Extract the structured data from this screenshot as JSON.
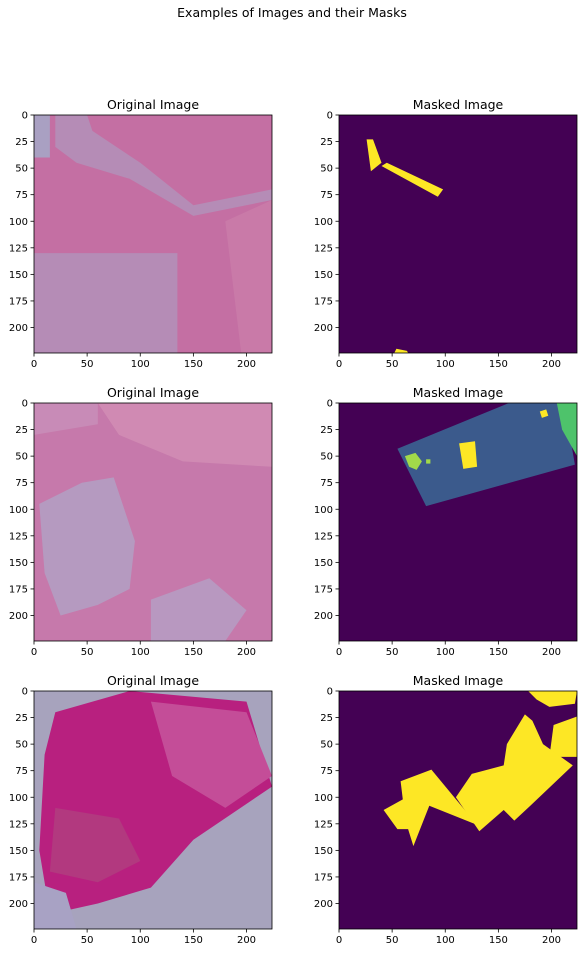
{
  "figure": {
    "suptitle": "Examples of Images and their Masks"
  },
  "colors": {
    "mask_background": "#440154",
    "mask_class_1": "#3b5a8c",
    "mask_class_2": "#fde725",
    "mask_class_3": "#4ec36b",
    "mask_class_4": "#a2d94a",
    "axis": "#000000"
  },
  "chart_data": [
    {
      "type": "image",
      "title": "Original Image",
      "xlim": [
        0,
        224
      ],
      "ylim": [
        224,
        0
      ],
      "xticks": [
        0,
        50,
        100,
        150,
        200
      ],
      "yticks": [
        0,
        25,
        50,
        75,
        100,
        125,
        150,
        175,
        200
      ],
      "image": {
        "base": "#c46fa3",
        "regions": [
          {
            "fill": "#b58cb6",
            "points": [
              [
                0,
                130
              ],
              [
                135,
                130
              ],
              [
                135,
                224
              ],
              [
                0,
                224
              ]
            ]
          },
          {
            "fill": "#b58cb6",
            "points": [
              [
                20,
                0
              ],
              [
                50,
                0
              ],
              [
                55,
                15
              ],
              [
                100,
                45
              ],
              [
                150,
                85
              ],
              [
                224,
                70
              ],
              [
                224,
                80
              ],
              [
                150,
                95
              ],
              [
                90,
                60
              ],
              [
                40,
                45
              ],
              [
                20,
                30
              ]
            ]
          },
          {
            "fill": "#c97aa8",
            "points": [
              [
                180,
                100
              ],
              [
                224,
                80
              ],
              [
                224,
                224
              ],
              [
                195,
                224
              ]
            ]
          },
          {
            "fill": "#a9a0c2",
            "points": [
              [
                0,
                0
              ],
              [
                15,
                0
              ],
              [
                15,
                40
              ],
              [
                0,
                40
              ]
            ]
          }
        ]
      }
    },
    {
      "type": "image",
      "title": "Masked Image",
      "xlim": [
        0,
        224
      ],
      "ylim": [
        224,
        0
      ],
      "xticks": [
        0,
        50,
        100,
        150,
        200
      ],
      "yticks": [
        0,
        25,
        50,
        75,
        100,
        125,
        150,
        175,
        200
      ],
      "image": {
        "base": "#440154",
        "regions": [
          {
            "fill": "#fde725",
            "points": [
              [
                26,
                23
              ],
              [
                32,
                23
              ],
              [
                40,
                45
              ],
              [
                30,
                53
              ]
            ]
          },
          {
            "fill": "#fde725",
            "points": [
              [
                40,
                48
              ],
              [
                45,
                45
              ],
              [
                98,
                70
              ],
              [
                93,
                77
              ]
            ]
          },
          {
            "fill": "#fde725",
            "points": [
              [
                52,
                224
              ],
              [
                54,
                220
              ],
              [
                64,
                222
              ],
              [
                65,
                224
              ]
            ]
          }
        ]
      }
    },
    {
      "type": "image",
      "title": "Original Image",
      "xlim": [
        0,
        224
      ],
      "ylim": [
        224,
        0
      ],
      "xticks": [
        0,
        50,
        100,
        150,
        200
      ],
      "yticks": [
        0,
        25,
        50,
        75,
        100,
        125,
        150,
        175,
        200
      ],
      "image": {
        "base": "#c679ab",
        "regions": [
          {
            "fill": "#b59ac0",
            "points": [
              [
                5,
                95
              ],
              [
                45,
                75
              ],
              [
                75,
                70
              ],
              [
                95,
                130
              ],
              [
                90,
                175
              ],
              [
                60,
                190
              ],
              [
                25,
                200
              ],
              [
                10,
                160
              ]
            ]
          },
          {
            "fill": "#b898c0",
            "points": [
              [
                110,
                185
              ],
              [
                165,
                165
              ],
              [
                200,
                195
              ],
              [
                180,
                224
              ],
              [
                110,
                224
              ]
            ]
          },
          {
            "fill": "#d08ab3",
            "points": [
              [
                60,
                0
              ],
              [
                224,
                0
              ],
              [
                224,
                60
              ],
              [
                140,
                55
              ],
              [
                80,
                30
              ]
            ]
          },
          {
            "fill": "#c88bb7",
            "points": [
              [
                0,
                0
              ],
              [
                60,
                0
              ],
              [
                60,
                20
              ],
              [
                0,
                30
              ]
            ]
          }
        ]
      }
    },
    {
      "type": "image",
      "title": "Masked Image",
      "xlim": [
        0,
        224
      ],
      "ylim": [
        224,
        0
      ],
      "xticks": [
        0,
        50,
        100,
        150,
        200
      ],
      "yticks": [
        0,
        25,
        50,
        75,
        100,
        125,
        150,
        175,
        200
      ],
      "image": {
        "base": "#440154",
        "regions": [
          {
            "fill": "#3b5a8c",
            "points": [
              [
                55,
                43
              ],
              [
                160,
                0
              ],
              [
                212,
                0
              ],
              [
                222,
                58
              ],
              [
                82,
                97
              ]
            ]
          },
          {
            "fill": "#4ec36b",
            "points": [
              [
                205,
                0
              ],
              [
                224,
                0
              ],
              [
                224,
                50
              ],
              [
                210,
                25
              ]
            ]
          },
          {
            "fill": "#a2d94a",
            "points": [
              [
                62,
                50
              ],
              [
                72,
                47
              ],
              [
                78,
                55
              ],
              [
                73,
                63
              ],
              [
                66,
                60
              ]
            ]
          },
          {
            "fill": "#a2d94a",
            "points": [
              [
                82,
                53
              ],
              [
                86,
                53
              ],
              [
                86,
                57
              ],
              [
                82,
                57
              ]
            ]
          },
          {
            "fill": "#fde725",
            "points": [
              [
                113,
                38
              ],
              [
                128,
                36
              ],
              [
                130,
                60
              ],
              [
                117,
                62
              ]
            ]
          },
          {
            "fill": "#fde725",
            "points": [
              [
                189,
                8
              ],
              [
                195,
                6
              ],
              [
                197,
                12
              ],
              [
                191,
                14
              ]
            ]
          }
        ]
      }
    },
    {
      "type": "image",
      "title": "Original Image",
      "xlim": [
        0,
        224
      ],
      "ylim": [
        224,
        0
      ],
      "xticks": [
        0,
        50,
        100,
        150,
        200
      ],
      "yticks": [
        0,
        25,
        50,
        75,
        100,
        125,
        150,
        175,
        200
      ],
      "image": {
        "base": "#a7a3bd",
        "regions": [
          {
            "fill": "#b8207f",
            "points": [
              [
                20,
                20
              ],
              [
                90,
                0
              ],
              [
                200,
                10
              ],
              [
                224,
                90
              ],
              [
                150,
                140
              ],
              [
                110,
                185
              ],
              [
                60,
                200
              ],
              [
                15,
                210
              ],
              [
                5,
                150
              ],
              [
                10,
                60
              ]
            ]
          },
          {
            "fill": "#c44d98",
            "points": [
              [
                110,
                10
              ],
              [
                200,
                20
              ],
              [
                224,
                80
              ],
              [
                180,
                110
              ],
              [
                130,
                80
              ]
            ]
          },
          {
            "fill": "#b2397f",
            "points": [
              [
                20,
                110
              ],
              [
                80,
                120
              ],
              [
                100,
                160
              ],
              [
                60,
                180
              ],
              [
                15,
                170
              ]
            ]
          },
          {
            "fill": "#a8a2c4",
            "points": [
              [
                0,
                180
              ],
              [
                30,
                190
              ],
              [
                40,
                224
              ],
              [
                0,
                224
              ]
            ]
          }
        ]
      }
    },
    {
      "type": "image",
      "title": "Masked Image",
      "xlim": [
        0,
        224
      ],
      "ylim": [
        224,
        0
      ],
      "xticks": [
        0,
        50,
        100,
        150,
        200
      ],
      "yticks": [
        0,
        25,
        50,
        75,
        100,
        125,
        150,
        175,
        200
      ],
      "image": {
        "base": "#440154",
        "regions": [
          {
            "fill": "#fde725",
            "points": [
              [
                178,
                0
              ],
              [
                224,
                0
              ],
              [
                222,
                12
              ],
              [
                198,
                15
              ],
              [
                186,
                8
              ]
            ]
          },
          {
            "fill": "#fde725",
            "points": [
              [
                202,
                32
              ],
              [
                224,
                24
              ],
              [
                224,
                62
              ],
              [
                198,
                62
              ]
            ]
          },
          {
            "fill": "#fde725",
            "points": [
              [
                42,
                112
              ],
              [
                60,
                102
              ],
              [
                58,
                85
              ],
              [
                87,
                74
              ],
              [
                130,
                126
              ],
              [
                85,
                108
              ],
              [
                70,
                146
              ],
              [
                65,
                130
              ],
              [
                55,
                130
              ]
            ]
          },
          {
            "fill": "#fde725",
            "points": [
              [
                110,
                100
              ],
              [
                125,
                78
              ],
              [
                155,
                70
              ],
              [
                158,
                50
              ],
              [
                175,
                22
              ],
              [
                182,
                28
              ],
              [
                192,
                50
              ],
              [
                220,
                70
              ],
              [
                180,
                108
              ],
              [
                165,
                122
              ],
              [
                155,
                112
              ],
              [
                132,
                132
              ]
            ]
          }
        ]
      }
    }
  ]
}
